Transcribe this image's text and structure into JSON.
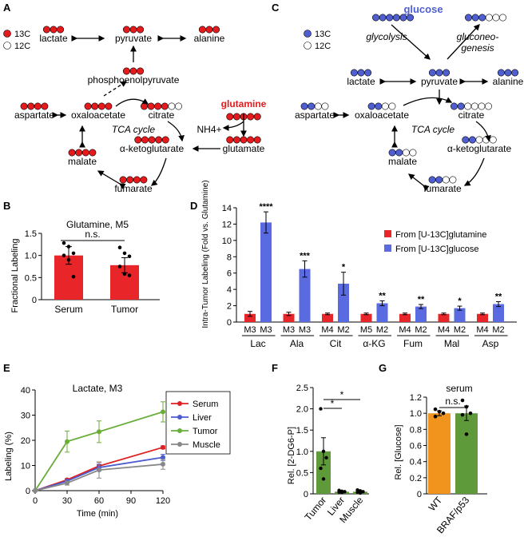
{
  "colors": {
    "red": "#e41a1c",
    "blue": "#4f5fd0",
    "red_bar": "#e8262a",
    "blue_bar": "#5a6ae0",
    "serum_line": "#e02020",
    "liver_line": "#4a5bd0",
    "tumor_line": "#6aae3a",
    "muscle_line": "#888888",
    "tumor_bar": "#5f9a3a",
    "orange_bar": "#f0941e"
  },
  "panel_labels": [
    "A",
    "B",
    "C",
    "D",
    "E",
    "F",
    "G"
  ],
  "pathway_a": {
    "legend_13c": "13C",
    "legend_12c": "12C",
    "metabolites": {
      "lactate": "lactate",
      "pyruvate": "pyruvate",
      "alanine": "alanine",
      "pep": "phosphoenolpyruvate",
      "aspartate": "aspartate",
      "oxaloacetate": "oxaloacetate",
      "citrate": "citrate",
      "glutamine": "glutamine",
      "nh4": "NH4+",
      "glutamate": "glutamate",
      "akg": "α-ketoglutarate",
      "malate": "malate",
      "fumarate": "fumarate"
    },
    "cycle_label": "TCA cycle"
  },
  "pathway_c": {
    "legend_13c": "13C",
    "legend_12c": "12C",
    "metabolites": {
      "glucose": "glucose",
      "glycolysis": "glycolysis",
      "gluconeogenesis": "gluconeo-\ngenesis",
      "lactate": "lactate",
      "pyruvate": "pyruvate",
      "alanine": "alanine",
      "aspartate": "aspartate",
      "oxaloacetate": "oxaloacetate",
      "citrate": "citrate",
      "akg": "α-ketoglutarate",
      "malate": "malate",
      "fumarate": "fumarate"
    },
    "cycle_label": "TCA cycle"
  },
  "chart_data": [
    {
      "panel": "B",
      "type": "bar",
      "title": "Glutamine, M5",
      "ylabel": "Fractional Labeling",
      "categories": [
        "Serum",
        "Tumor"
      ],
      "values": [
        1.0,
        0.78
      ],
      "errors": [
        0.2,
        0.17
      ],
      "points": [
        [
          1.28,
          1.2,
          1.05,
          1.0,
          0.9,
          0.52
        ],
        [
          1.18,
          1.05,
          0.98,
          0.75,
          0.58,
          0.55
        ]
      ],
      "ylim": [
        0,
        1.5
      ],
      "yticks": [
        "0",
        "0.5",
        "1.0",
        "1.5"
      ],
      "annotation": "n.s."
    },
    {
      "panel": "D",
      "type": "bar",
      "ylabel": "Intra-Tumor Labeling (Fold vs. Glutamine)",
      "ylim": [
        0,
        14
      ],
      "yticks": [
        "0",
        "2",
        "4",
        "6",
        "8",
        "10",
        "12",
        "14"
      ],
      "groups": [
        {
          "name": "Lac",
          "isotopologues": [
            "M3",
            "M3"
          ],
          "glutamine": 1.0,
          "glucose": 12.2,
          "glutamine_err": 0.3,
          "glucose_err": 1.3,
          "sig": "****"
        },
        {
          "name": "Ala",
          "isotopologues": [
            "M3",
            "M3"
          ],
          "glutamine": 1.0,
          "glucose": 6.5,
          "glutamine_err": 0.2,
          "glucose_err": 1.0,
          "sig": "***"
        },
        {
          "name": "Cit",
          "isotopologues": [
            "M4",
            "M2"
          ],
          "glutamine": 1.0,
          "glucose": 4.7,
          "glutamine_err": 0.1,
          "glucose_err": 1.4,
          "sig": "*"
        },
        {
          "name": "α-KG",
          "isotopologues": [
            "M5",
            "M2"
          ],
          "glutamine": 1.0,
          "glucose": 2.3,
          "glutamine_err": 0.1,
          "glucose_err": 0.3,
          "sig": "**"
        },
        {
          "name": "Fum",
          "isotopologues": [
            "M4",
            "M2"
          ],
          "glutamine": 1.0,
          "glucose": 1.9,
          "glutamine_err": 0.1,
          "glucose_err": 0.25,
          "sig": "**"
        },
        {
          "name": "Mal",
          "isotopologues": [
            "M4",
            "M2"
          ],
          "glutamine": 1.0,
          "glucose": 1.7,
          "glutamine_err": 0.1,
          "glucose_err": 0.25,
          "sig": "*"
        },
        {
          "name": "Asp",
          "isotopologues": [
            "M4",
            "M2"
          ],
          "glutamine": 1.0,
          "glucose": 2.2,
          "glutamine_err": 0.1,
          "glucose_err": 0.3,
          "sig": "**"
        }
      ],
      "legend": [
        "From [U-13C]glutamine",
        "From [U-13C]glucose"
      ],
      "legend_position": "top-right"
    },
    {
      "panel": "E",
      "type": "line",
      "title": "Lactate, M3",
      "xlabel": "Time (min)",
      "ylabel": "Labeling (%)",
      "x": [
        0,
        30,
        60,
        120
      ],
      "xticks": [
        "0",
        "30",
        "60",
        "90",
        "120"
      ],
      "yticks": [
        "0",
        "10",
        "20",
        "30",
        "40"
      ],
      "xlim": [
        0,
        120
      ],
      "ylim": [
        0,
        40
      ],
      "series": [
        {
          "name": "Serum",
          "values": [
            0,
            4.3,
            9.8,
            17.2
          ],
          "errors": [
            0,
            0.5,
            1.5,
            0.6
          ]
        },
        {
          "name": "Liver",
          "values": [
            0,
            3.8,
            9.2,
            13.2
          ],
          "errors": [
            0,
            0.5,
            1.3,
            1.2
          ]
        },
        {
          "name": "Tumor",
          "values": [
            0,
            19.5,
            23.4,
            31.3
          ],
          "errors": [
            0,
            4.2,
            4.3,
            4.0
          ]
        },
        {
          "name": "Muscle",
          "values": [
            0,
            3.0,
            8.2,
            10.5
          ],
          "errors": [
            0,
            0.8,
            3.2,
            2.0
          ]
        }
      ],
      "legend_position": "right"
    },
    {
      "panel": "F",
      "type": "bar",
      "ylabel": "Rel. [2-DG6-P]",
      "categories": [
        "Tumor",
        "Liver",
        "Muscle"
      ],
      "values": [
        1.0,
        0.05,
        0.05
      ],
      "errors": [
        0.32,
        0.02,
        0.02
      ],
      "points": [
        [
          2.0,
          1.0,
          0.85,
          0.6,
          0.35
        ],
        [
          0.08,
          0.06,
          0.05,
          0.04,
          0.03
        ],
        [
          0.09,
          0.07,
          0.05,
          0.04,
          0.02
        ]
      ],
      "ylim": [
        0,
        2.5
      ],
      "yticks": [
        "0",
        "0.5",
        "1.0",
        "1.5",
        "2.0",
        "2.5"
      ],
      "annotations": [
        "*",
        "*"
      ]
    },
    {
      "panel": "G",
      "type": "bar",
      "title": "serum",
      "ylabel": "Rel. [Glucose]",
      "categories": [
        "WT",
        "BRAF/p53"
      ],
      "values": [
        1.0,
        1.0
      ],
      "errors": [
        0.03,
        0.09
      ],
      "points": [
        [
          1.05,
          1.02,
          1.0,
          0.96
        ],
        [
          1.16,
          1.08,
          1.0,
          0.98,
          0.74
        ]
      ],
      "ylim": [
        0,
        1.2
      ],
      "yticks": [
        "0",
        "0.2",
        "0.4",
        "0.6",
        "0.8",
        "1.0",
        "1.2"
      ],
      "annotation": "n.s."
    }
  ]
}
